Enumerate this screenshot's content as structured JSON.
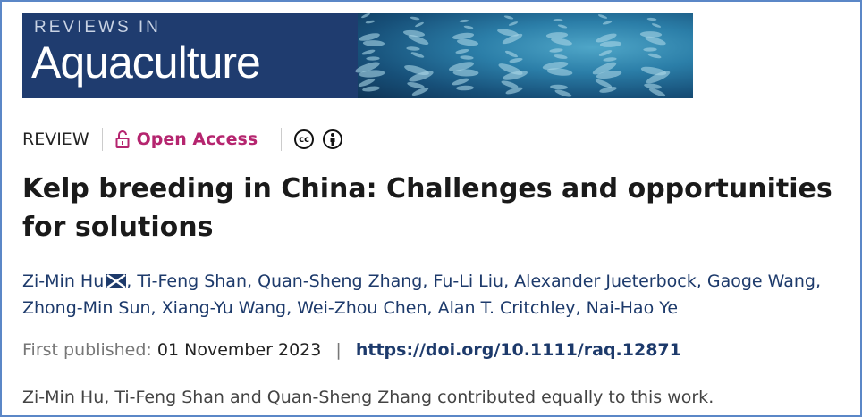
{
  "journal": {
    "subtitle": "REVIEWS IN",
    "title": "Aquaculture",
    "brand_color": "#1f3c6f"
  },
  "article_type": "REVIEW",
  "access": {
    "label": "Open Access",
    "icon": "unlocked-padlock-icon",
    "color": "#b5256f"
  },
  "license_icons": [
    {
      "icon": "creative-commons-icon",
      "text": "cc"
    },
    {
      "icon": "attribution-icon"
    }
  ],
  "title": "Kelp breeding in China: Challenges and opportunities for solutions",
  "authors": [
    "Zi-Min Hu",
    "Ti-Feng Shan",
    "Quan-Sheng Zhang",
    "Fu-Li Liu",
    "Alexander Jueterbock",
    "Gaoge Wang",
    "Zhong-Min Sun",
    "Xiang-Yu Wang",
    "Wei-Zhou Chen",
    "Alan T. Critchley",
    "Nai-Hao Ye"
  ],
  "corresponding_icon": "envelope-icon",
  "published": {
    "label": "First published:",
    "date": "01 November 2023",
    "separator": "|",
    "doi": "https://doi.org/10.1111/raq.12871"
  },
  "note": "Zi-Min Hu, Ti-Feng Shan and Quan-Sheng Zhang contributed equally to this work."
}
